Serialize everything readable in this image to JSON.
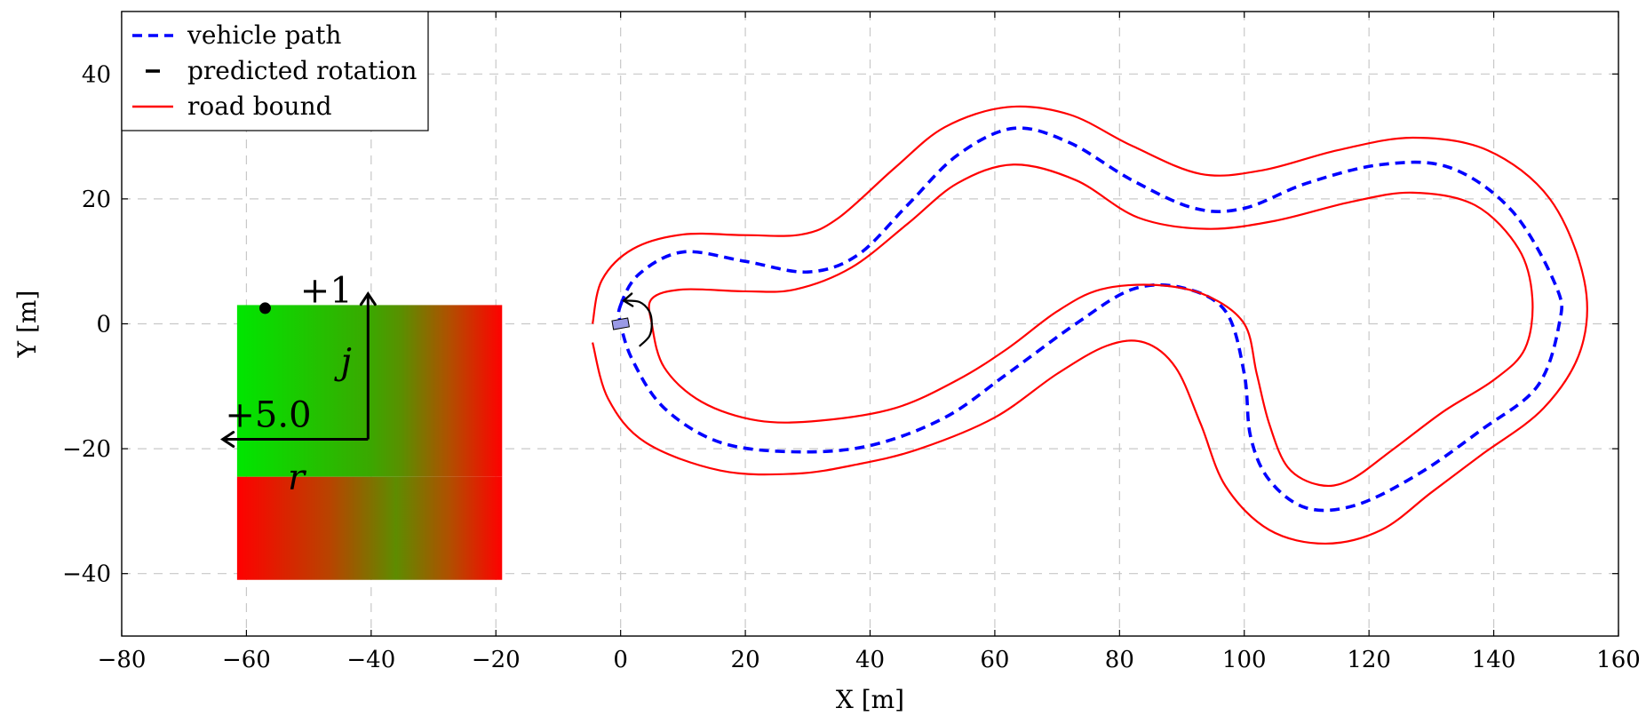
{
  "chart_data": {
    "type": "line",
    "xlabel": "X [m]",
    "ylabel": "Y [m]",
    "xlim": [
      -80,
      160
    ],
    "ylim": [
      -50,
      50
    ],
    "xticks": [
      -80,
      -60,
      -40,
      -20,
      0,
      20,
      40,
      60,
      80,
      100,
      120,
      140,
      160
    ],
    "yticks": [
      -40,
      -20,
      0,
      20,
      40
    ],
    "xtick_labels": [
      "−80",
      "−60",
      "−40",
      "−20",
      "0",
      "20",
      "40",
      "60",
      "80",
      "100",
      "120",
      "140",
      "160"
    ],
    "ytick_labels": [
      "−40",
      "−20",
      "0",
      "20",
      "40"
    ],
    "grid": true,
    "legend_position": "top-left",
    "legend": [
      {
        "label": "vehicle path",
        "color": "#0000ff",
        "style": "dashed"
      },
      {
        "label": "predicted rotation",
        "color": "#000000",
        "style": "solid"
      },
      {
        "label": "road bound",
        "color": "#ff0000",
        "style": "solid"
      }
    ],
    "series": [
      {
        "name": "vehicle path",
        "color": "#0000ff",
        "style": "dashed",
        "closed": true,
        "points": [
          [
            0,
            3
          ],
          [
            3,
            8
          ],
          [
            10,
            11.5
          ],
          [
            20,
            10
          ],
          [
            30,
            8.3
          ],
          [
            38,
            11
          ],
          [
            46,
            19
          ],
          [
            54,
            27
          ],
          [
            63,
            31.3
          ],
          [
            72,
            29
          ],
          [
            82,
            23
          ],
          [
            92,
            18.5
          ],
          [
            100,
            18.5
          ],
          [
            110,
            22.5
          ],
          [
            122,
            25.5
          ],
          [
            133,
            25
          ],
          [
            143,
            18
          ],
          [
            150,
            6
          ],
          [
            150.5,
            0
          ],
          [
            147,
            -10
          ],
          [
            138,
            -17
          ],
          [
            128,
            -24
          ],
          [
            118,
            -29
          ],
          [
            110,
            -29.5
          ],
          [
            104,
            -25
          ],
          [
            101,
            -18
          ],
          [
            100,
            -8
          ],
          [
            97,
            2
          ],
          [
            90,
            5.8
          ],
          [
            82,
            5.5
          ],
          [
            73,
            0
          ],
          [
            62,
            -8
          ],
          [
            52,
            -15
          ],
          [
            40,
            -19.5
          ],
          [
            28,
            -20.5
          ],
          [
            16,
            -19
          ],
          [
            7,
            -13.5
          ],
          [
            2,
            -6
          ],
          [
            0,
            0
          ]
        ]
      },
      {
        "name": "road bound outer",
        "color": "#ff0000",
        "style": "solid",
        "closed": false,
        "points": [
          [
            -4.5,
            0
          ],
          [
            -3,
            7
          ],
          [
            2,
            12
          ],
          [
            10,
            14.3
          ],
          [
            20,
            14.2
          ],
          [
            29,
            14.3
          ],
          [
            35,
            17
          ],
          [
            44,
            25
          ],
          [
            52,
            31.5
          ],
          [
            62,
            34.7
          ],
          [
            72,
            33.5
          ],
          [
            82,
            28.5
          ],
          [
            93,
            24
          ],
          [
            103,
            24.6
          ],
          [
            115,
            27.8
          ],
          [
            127,
            29.8
          ],
          [
            139,
            27.8
          ],
          [
            149,
            20
          ],
          [
            154.5,
            7
          ],
          [
            154,
            -4
          ],
          [
            148,
            -13.5
          ],
          [
            138,
            -21
          ],
          [
            130,
            -27
          ],
          [
            122,
            -33
          ],
          [
            113,
            -35.2
          ],
          [
            104,
            -33
          ],
          [
            97,
            -26
          ],
          [
            93,
            -16
          ],
          [
            89,
            -7
          ],
          [
            84,
            -3
          ],
          [
            78,
            -3.5
          ],
          [
            70,
            -8
          ],
          [
            60,
            -15
          ],
          [
            48,
            -20
          ],
          [
            38,
            -22.5
          ],
          [
            28,
            -24
          ],
          [
            16,
            -23.5
          ],
          [
            4,
            -19
          ],
          [
            -2,
            -12
          ],
          [
            -4.5,
            -3
          ]
        ]
      },
      {
        "name": "road bound inner",
        "color": "#ff0000",
        "style": "solid",
        "closed": true,
        "points": [
          [
            5,
            4
          ],
          [
            10,
            5.5
          ],
          [
            20,
            5.2
          ],
          [
            28,
            5.5
          ],
          [
            37,
            9
          ],
          [
            46,
            16
          ],
          [
            54,
            22.5
          ],
          [
            63,
            25.5
          ],
          [
            73,
            23
          ],
          [
            83,
            17
          ],
          [
            94,
            15.2
          ],
          [
            105,
            16.5
          ],
          [
            117,
            19.5
          ],
          [
            127,
            21
          ],
          [
            137,
            19
          ],
          [
            144,
            12
          ],
          [
            146.2,
            4
          ],
          [
            145,
            -4
          ],
          [
            140,
            -9
          ],
          [
            132,
            -14
          ],
          [
            124,
            -20
          ],
          [
            117,
            -25
          ],
          [
            112,
            -25.8
          ],
          [
            107,
            -23
          ],
          [
            104,
            -16
          ],
          [
            102,
            -8
          ],
          [
            100,
            0
          ],
          [
            94,
            4.5
          ],
          [
            86,
            6.2
          ],
          [
            77,
            5.5
          ],
          [
            70,
            2
          ],
          [
            62,
            -4
          ],
          [
            54,
            -9
          ],
          [
            44,
            -13.5
          ],
          [
            32,
            -15.5
          ],
          [
            22,
            -15.5
          ],
          [
            13,
            -12.5
          ],
          [
            7,
            -7
          ],
          [
            5,
            0
          ]
        ]
      },
      {
        "name": "predicted rotation",
        "color": "#000000",
        "style": "solid",
        "closed": false,
        "points": [
          [
            0.5,
            3.7
          ],
          [
            3,
            3.5
          ],
          [
            4.6,
            2
          ],
          [
            5,
            0
          ],
          [
            4.6,
            -2
          ],
          [
            3,
            -3.6
          ]
        ]
      }
    ],
    "vehicle_marker": {
      "x": 0,
      "y": 0,
      "angle_deg": 10,
      "fill": "#9a9ae6"
    },
    "inset": {
      "labels": {
        "j_label": "+1",
        "r_label": "+5.0",
        "j_axis": "j",
        "r_axis": "r"
      },
      "colors": {
        "green": "#00e600",
        "red": "#ff0000",
        "mid": "#808000"
      }
    }
  }
}
